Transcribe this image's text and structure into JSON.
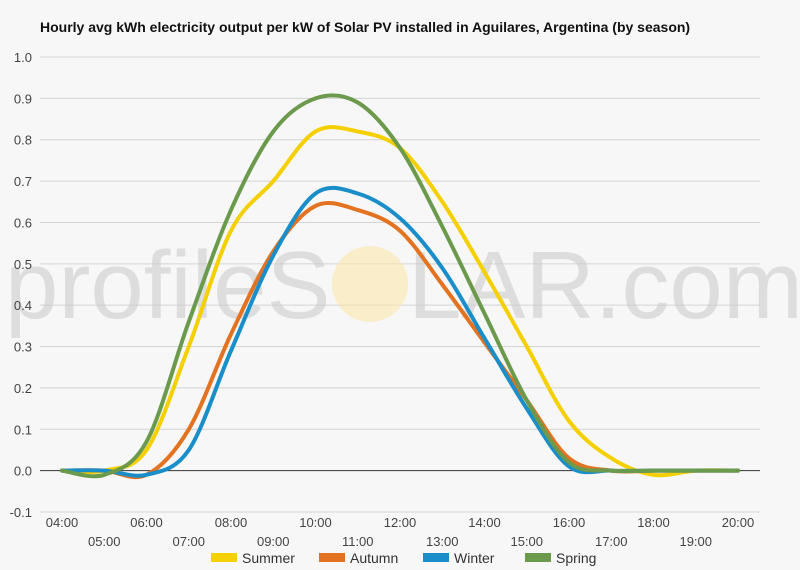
{
  "chart_data": {
    "type": "line",
    "title": "Hourly avg kWh electricity output per kW of Solar PV installed in Aguilares, Argentina (by season)",
    "x": [
      "04:00",
      "05:00",
      "06:00",
      "07:00",
      "08:00",
      "09:00",
      "10:00",
      "11:00",
      "12:00",
      "13:00",
      "14:00",
      "15:00",
      "16:00",
      "17:00",
      "18:00",
      "19:00",
      "20:00"
    ],
    "ylim": [
      -0.1,
      1.0
    ],
    "yticks": [
      "1.0",
      "0.9",
      "0.8",
      "0.7",
      "0.6",
      "0.5",
      "0.4",
      "0.3",
      "0.2",
      "0.1",
      "0.0",
      "-0.1"
    ],
    "grid": true,
    "legend_position": "bottom",
    "series": [
      {
        "name": "Summer",
        "color": "#f5d000",
        "values": [
          0.0,
          0.0,
          0.05,
          0.3,
          0.58,
          0.7,
          0.82,
          0.82,
          0.78,
          0.65,
          0.48,
          0.3,
          0.12,
          0.03,
          -0.01,
          0.0,
          0.0
        ]
      },
      {
        "name": "Autumn",
        "color": "#e37221",
        "values": [
          0.0,
          0.0,
          -0.01,
          0.1,
          0.33,
          0.53,
          0.64,
          0.63,
          0.58,
          0.45,
          0.31,
          0.17,
          0.03,
          0.0,
          0.0,
          0.0,
          0.0
        ]
      },
      {
        "name": "Winter",
        "color": "#1a8ec9",
        "values": [
          0.0,
          0.0,
          -0.01,
          0.05,
          0.29,
          0.52,
          0.67,
          0.67,
          0.61,
          0.49,
          0.32,
          0.15,
          0.01,
          0.0,
          0.0,
          0.0,
          0.0
        ]
      },
      {
        "name": "Spring",
        "color": "#6c9a4d",
        "values": [
          0.0,
          -0.01,
          0.07,
          0.36,
          0.63,
          0.82,
          0.9,
          0.89,
          0.78,
          0.59,
          0.38,
          0.17,
          0.02,
          0.0,
          0.0,
          0.0,
          0.0
        ]
      }
    ]
  },
  "watermark": {
    "left": "profileS",
    "right": "LAR.com"
  }
}
